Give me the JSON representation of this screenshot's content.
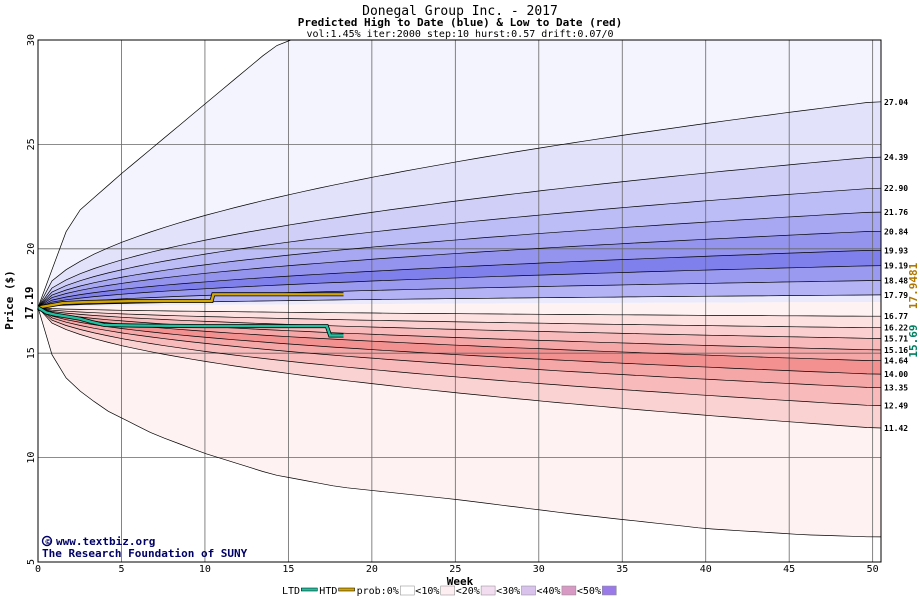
{
  "chart_data": {
    "type": "area",
    "title": "Donegal Group Inc. - 2017",
    "subtitle": "Predicted High to Date (blue) &  Low to Date (red)",
    "params": "vol:1.45% iter:2000 step:10 hurst:0.57 drift:0.07/0",
    "xlabel": "Week",
    "ylabel": "Price ($)",
    "xlim": [
      0,
      50.5
    ],
    "ylim": [
      5,
      30
    ],
    "x_ticks": [
      0,
      5,
      10,
      15,
      20,
      25,
      30,
      35,
      40,
      45,
      50
    ],
    "y_ticks": [
      5,
      10,
      15,
      20,
      25,
      30
    ],
    "grid": true,
    "start_price": 17.19,
    "start_label": "17.19",
    "high_bands": {
      "end_values": [
        27.04,
        24.39,
        22.9,
        21.76,
        20.84,
        19.93,
        19.19,
        18.48,
        17.79
      ],
      "end_labels": [
        "27.04",
        "24.39",
        "22.90",
        "21.76",
        "20.84",
        "19.93",
        "19.19",
        "18.48",
        "17.79"
      ],
      "fill_colors": [
        "#f4f4fe",
        "#e2e2fb",
        "#cfcff8",
        "#bcbcf6",
        "#a8a8f2",
        "#9494ef",
        "#8080ec",
        "#9a9af1",
        "#b3b3f5",
        "#eaeafc"
      ]
    },
    "low_bands": {
      "end_values": [
        16.77,
        16.22,
        15.71,
        15.16,
        14.64,
        14.0,
        13.35,
        12.49,
        11.42
      ],
      "end_labels": [
        "16.77",
        "16.22",
        "15.71",
        "15.16",
        "14.64",
        "14.00",
        "13.35",
        "12.49",
        "11.42"
      ],
      "fill_colors": [
        "#fef2f2",
        "#fde0e0",
        "#fbcfcf",
        "#f8baba",
        "#f5a6a6",
        "#f39090",
        "#f5a6a6",
        "#f8baba",
        "#fbd2d2",
        "#fef2f2"
      ]
    },
    "outer_high": {
      "x": [
        0,
        2,
        5,
        8,
        11,
        14,
        16
      ],
      "y": [
        17.19,
        21.5,
        23.6,
        25.6,
        27.6,
        29.6,
        30.5
      ]
    },
    "outer_low": {
      "x": [
        0,
        1,
        2,
        4,
        7,
        10,
        14,
        18,
        25,
        32,
        40,
        46,
        50
      ],
      "y": [
        17.19,
        14.5,
        13.5,
        12.3,
        11.1,
        10.2,
        9.2,
        8.6,
        8.0,
        7.3,
        6.6,
        6.3,
        6.2
      ]
    },
    "series": [
      {
        "name": "HTD",
        "color": "#d4a600",
        "x": [
          0,
          0.8,
          1.5,
          3,
          6,
          9,
          10.4,
          10.5,
          13,
          16,
          18.3
        ],
        "y": [
          17.19,
          17.3,
          17.4,
          17.45,
          17.5,
          17.5,
          17.5,
          17.82,
          17.82,
          17.82,
          17.82
        ],
        "end_label": "17.9481"
      },
      {
        "name": "LTD",
        "color": "#20c0a0",
        "x": [
          0,
          0.5,
          1,
          1.8,
          2.5,
          3.2,
          4,
          6,
          10,
          14,
          17.3,
          17.5,
          18.3
        ],
        "y": [
          17.19,
          16.95,
          16.85,
          16.75,
          16.65,
          16.5,
          16.35,
          16.32,
          16.3,
          16.3,
          16.3,
          15.85,
          15.85
        ],
        "end_label": "15.69"
      }
    ],
    "credit_lines": [
      "www.textbiz.org",
      "The Research Foundation of SUNY"
    ],
    "credit_symbol": "©",
    "legend": {
      "placement": "bottom",
      "items": [
        {
          "label": "LTD",
          "color": "#20c0a0",
          "kind": "line"
        },
        {
          "label": "HTD",
          "color": "#d4a600",
          "kind": "line"
        },
        {
          "label": "prob:0%",
          "color": "#ffffff",
          "kind": "swatch"
        },
        {
          "label": "<10%",
          "color": "#fdeef2",
          "kind": "swatch"
        },
        {
          "label": "<20%",
          "color": "#f2dcf0",
          "kind": "swatch"
        },
        {
          "label": "<30%",
          "color": "#d9c2ec",
          "kind": "swatch"
        },
        {
          "label": "<40%",
          "color": "#d89ac4",
          "kind": "swatch"
        },
        {
          "label": "<50%",
          "color": "#9a7ae8",
          "kind": "swatch"
        }
      ]
    }
  }
}
